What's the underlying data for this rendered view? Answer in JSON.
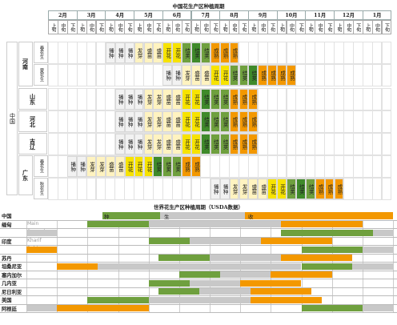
{
  "colors": {
    "sow": "#f2f2f2",
    "sprout": "#fff3c0",
    "flower": "#f7e300",
    "pod": "#6fa03e",
    "harvest": "#f39800",
    "dark": "#3f8a2a",
    "grey": "#c8c8c8"
  },
  "china": {
    "title": "中国花生产区种植周期",
    "months": [
      "2月",
      "3月",
      "4月",
      "5月",
      "6月",
      "7月",
      "8月",
      "9月",
      "10月",
      "11月",
      "12月",
      "1月"
    ],
    "xun": [
      "上旬",
      "中旬",
      "下旬"
    ],
    "country": "中国",
    "regions": [
      "河南",
      "山东",
      "河北",
      "吉辽",
      "广东"
    ],
    "subregions": [
      "春花生",
      "夏花生",
      "春花生",
      "秋花生"
    ],
    "stage_names": {
      "s1": "播种",
      "s2": "发芽",
      "s3": "盛苗",
      "s4": "开花",
      "s5": "结荚",
      "s6": "成熟"
    },
    "rows": [
      {
        "start": 6,
        "stages": [
          "s1",
          "s1",
          "s1",
          "s2",
          "s3",
          "s3",
          "s4",
          "s4",
          "s5",
          "s5",
          "s5",
          "s6",
          "s6",
          "s6"
        ]
      },
      {
        "start": 12,
        "stages": [
          "s1",
          "s1",
          "s2",
          "s3",
          "s3",
          "s4",
          "s4",
          "s5",
          "s5",
          "s5",
          "s6",
          "s6",
          "s6",
          "s6"
        ]
      },
      {
        "start": 7,
        "stages": [
          "s1",
          "s1",
          "s1",
          "s2",
          "s2",
          "s3",
          "s3",
          "s4",
          "s4",
          "s5",
          "s5",
          "s5",
          "s6",
          "s6",
          "s6"
        ]
      },
      {
        "start": 7,
        "stages": [
          "s1",
          "s1",
          "s1",
          "s2",
          "s2",
          "s3",
          "s3",
          "s4",
          "s4",
          "s5",
          "s5",
          "s5",
          "s6",
          "s6",
          "s6"
        ]
      },
      {
        "start": 7,
        "stages": [
          "s1",
          "s1",
          "s1",
          "s2",
          "s2",
          "s3",
          "s3",
          "s4",
          "s4",
          "s5",
          "s5",
          "s5",
          "s6",
          "s6",
          "s6"
        ]
      },
      {
        "start": 2,
        "stages": [
          "s1",
          "s1",
          "s2",
          "s2",
          "s3",
          "s3",
          "s4",
          "s4",
          "s4",
          "s5",
          "s5",
          "s5",
          "s6",
          "s6"
        ]
      },
      {
        "start": 17,
        "stages": [
          "s1",
          "s1",
          "s2",
          "s2",
          "s3",
          "s3",
          "s4",
          "s4",
          "s5",
          "s5",
          "s5",
          "s6",
          "s6",
          "s6"
        ]
      }
    ]
  },
  "world": {
    "title": "世界花生产区种植周期（USDA数据）",
    "legend": {
      "plant": "种植",
      "grow": "生长",
      "harvest": "收获"
    },
    "rows": [
      {
        "name": "中国",
        "sub": "",
        "bars": []
      },
      {
        "name": "缅甸",
        "sub": "Main",
        "bars": [
          {
            "s": 6,
            "e": 12,
            "c": "pod"
          },
          {
            "s": 12,
            "e": 25,
            "c": "grey"
          },
          {
            "s": 25,
            "e": 33,
            "c": "harvest"
          }
        ]
      },
      {
        "name": "",
        "sub": "Second",
        "bars": [
          {
            "s": 0,
            "e": 3,
            "c": "grey"
          },
          {
            "s": 25,
            "e": 34,
            "c": "pod"
          },
          {
            "s": 34,
            "e": 36,
            "c": "grey"
          }
        ]
      },
      {
        "name": "印度",
        "sub": "Kharif",
        "bars": [
          {
            "s": 12,
            "e": 16,
            "c": "pod"
          },
          {
            "s": 16,
            "e": 23,
            "c": "grey"
          },
          {
            "s": 23,
            "e": 30,
            "c": "harvest"
          }
        ]
      },
      {
        "name": "",
        "sub": "Rabi",
        "bars": [
          {
            "s": 0,
            "e": 3,
            "c": "harvest"
          },
          {
            "s": 27,
            "e": 33,
            "c": "pod"
          },
          {
            "s": 33,
            "e": 36,
            "c": "grey"
          }
        ]
      },
      {
        "name": "苏丹",
        "sub": "",
        "bars": [
          {
            "s": 13,
            "e": 18,
            "c": "pod"
          },
          {
            "s": 18,
            "e": 25,
            "c": "grey"
          },
          {
            "s": 25,
            "e": 32,
            "c": "harvest"
          }
        ]
      },
      {
        "name": "坦桑尼亚",
        "sub": "",
        "bars": [
          {
            "s": 3,
            "e": 7,
            "c": "harvest"
          },
          {
            "s": 7,
            "e": 27,
            "c": "grey"
          },
          {
            "s": 27,
            "e": 32,
            "c": "pod"
          },
          {
            "s": 32,
            "e": 36,
            "c": "grey"
          }
        ]
      },
      {
        "name": "塞内加尔",
        "sub": "",
        "bars": [
          {
            "s": 15,
            "e": 19,
            "c": "pod"
          },
          {
            "s": 19,
            "e": 24,
            "c": "grey"
          },
          {
            "s": 24,
            "e": 30,
            "c": "harvest"
          }
        ]
      },
      {
        "name": "几内亚",
        "sub": "",
        "bars": [
          {
            "s": 12,
            "e": 16,
            "c": "pod"
          },
          {
            "s": 16,
            "e": 21,
            "c": "grey"
          },
          {
            "s": 21,
            "e": 27,
            "c": "harvest"
          }
        ]
      },
      {
        "name": "尼日利亚",
        "sub": "",
        "bars": [
          {
            "s": 13,
            "e": 17,
            "c": "pod"
          },
          {
            "s": 17,
            "e": 22,
            "c": "grey"
          },
          {
            "s": 22,
            "e": 28,
            "c": "harvest"
          }
        ]
      },
      {
        "name": "美国",
        "sub": "",
        "bars": [
          {
            "s": 6,
            "e": 12,
            "c": "pod"
          },
          {
            "s": 12,
            "e": 22,
            "c": "grey"
          },
          {
            "s": 22,
            "e": 29,
            "c": "harvest"
          }
        ]
      },
      {
        "name": "阿根廷",
        "sub": "",
        "bars": [
          {
            "s": 0,
            "e": 3,
            "c": "grey"
          },
          {
            "s": 3,
            "e": 12,
            "c": "harvest"
          },
          {
            "s": 27,
            "e": 33,
            "c": "pod"
          },
          {
            "s": 33,
            "e": 36,
            "c": "grey"
          }
        ]
      }
    ]
  }
}
